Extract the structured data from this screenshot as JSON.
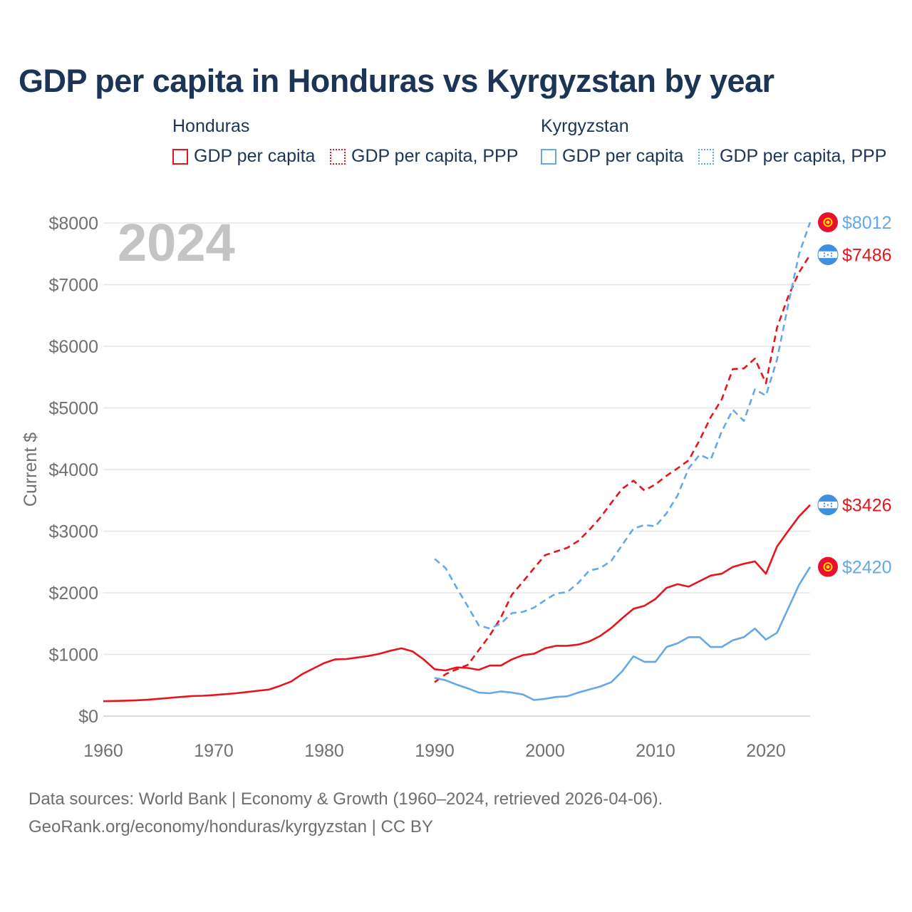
{
  "title": "GDP per capita in Honduras vs Kyrgyzstan by year",
  "year_watermark": "2024",
  "legend": {
    "groups": [
      {
        "name": "Honduras",
        "color": "#e8141b",
        "items": [
          {
            "label": "GDP per capita",
            "style": "solid"
          },
          {
            "label": "GDP per capita, PPP",
            "style": "dotted"
          }
        ]
      },
      {
        "name": "Kyrgyzstan",
        "color": "#64a8e8",
        "items": [
          {
            "label": "GDP per capita",
            "style": "solid"
          },
          {
            "label": "GDP per capita, PPP",
            "style": "dotted"
          }
        ]
      }
    ]
  },
  "footer": {
    "line1": "Data sources: World Bank | Economy & Growth (1960–2024, retrieved 2026-04-06).",
    "line2": "GeoRank.org/economy/honduras/kyrgyzstan | CC BY"
  },
  "chart_data": {
    "type": "line",
    "title": "GDP per capita in Honduras vs Kyrgyzstan by year",
    "xlabel": "",
    "ylabel": "Current $",
    "xlim": [
      1960,
      2024
    ],
    "ylim": [
      0,
      8000
    ],
    "xticks": [
      1960,
      1970,
      1980,
      1990,
      2000,
      2010,
      2020
    ],
    "yticks": [
      0,
      1000,
      2000,
      3000,
      4000,
      5000,
      6000,
      7000,
      8000
    ],
    "ytick_labels": [
      "$0",
      "$1000",
      "$2000",
      "$3000",
      "$4000",
      "$5000",
      "$6000",
      "$7000",
      "$8000"
    ],
    "grid": true,
    "series": [
      {
        "name": "Honduras GDP per capita",
        "country": "Honduras",
        "color": "#e8141b",
        "dash": "solid",
        "end_label": "$3426",
        "flag": "honduras",
        "start_year": 1960,
        "values": [
          240,
          245,
          250,
          255,
          265,
          280,
          295,
          310,
          325,
          330,
          340,
          355,
          370,
          390,
          410,
          430,
          490,
          560,
          680,
          770,
          860,
          920,
          925,
          950,
          975,
          1010,
          1060,
          1100,
          1050,
          920,
          760,
          740,
          790,
          780,
          750,
          820,
          820,
          920,
          990,
          1010,
          1100,
          1140,
          1140,
          1160,
          1210,
          1300,
          1430,
          1590,
          1740,
          1790,
          1900,
          2080,
          2140,
          2100,
          2190,
          2280,
          2310,
          2420,
          2470,
          2510,
          2310,
          2750,
          3000,
          3240,
          3426
        ]
      },
      {
        "name": "Honduras GDP per capita, PPP",
        "country": "Honduras",
        "color": "#e8141b",
        "dash": "dashed",
        "end_label": "$7486",
        "flag": "honduras",
        "start_year": 1990,
        "values": [
          550,
          680,
          760,
          830,
          1070,
          1310,
          1600,
          1970,
          2180,
          2400,
          2610,
          2670,
          2730,
          2840,
          3020,
          3220,
          3460,
          3690,
          3820,
          3660,
          3760,
          3900,
          4020,
          4150,
          4480,
          4850,
          5140,
          5630,
          5640,
          5800,
          5400,
          6300,
          6800,
          7200,
          7486
        ]
      },
      {
        "name": "Kyrgyzstan GDP per capita",
        "country": "Kyrgyzstan",
        "color": "#64a8e8",
        "dash": "solid",
        "end_label": "$2420",
        "flag": "kyrgyzstan",
        "start_year": 1990,
        "values": [
          620,
          580,
          510,
          450,
          380,
          370,
          400,
          380,
          350,
          260,
          280,
          310,
          320,
          380,
          430,
          480,
          550,
          730,
          970,
          880,
          880,
          1120,
          1180,
          1280,
          1280,
          1120,
          1120,
          1230,
          1280,
          1420,
          1240,
          1350,
          1740,
          2130,
          2420
        ]
      },
      {
        "name": "Kyrgyzstan GDP per capita, PPP",
        "country": "Kyrgyzstan",
        "color": "#64a8e8",
        "dash": "dashed",
        "end_label": "$8012",
        "flag": "kyrgyzstan",
        "start_year": 1990,
        "values": [
          2550,
          2400,
          2080,
          1780,
          1470,
          1420,
          1500,
          1670,
          1690,
          1760,
          1880,
          1990,
          2010,
          2160,
          2360,
          2400,
          2520,
          2780,
          3040,
          3100,
          3080,
          3290,
          3580,
          4020,
          4240,
          4160,
          4620,
          4970,
          4790,
          5300,
          5200,
          5780,
          6660,
          7500,
          8012
        ]
      }
    ]
  }
}
